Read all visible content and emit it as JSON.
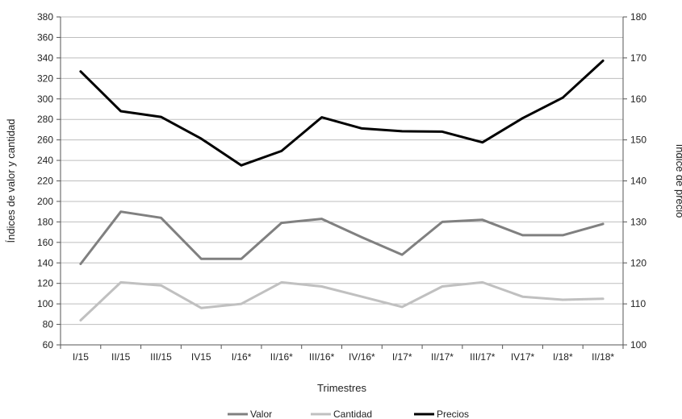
{
  "chart_data": {
    "type": "line",
    "title": "",
    "xlabel": "Trimestres",
    "ylabel_left": "Índices de valor y cantidad",
    "ylabel_right": "Índice de precio",
    "categories": [
      "I/15",
      "II/15",
      "III/15",
      "IV15",
      "I/16*",
      "II/16*",
      "III/16*",
      "IV/16*",
      "I/17*",
      "II/17*",
      "III/17*",
      "IV17*",
      "I/18*",
      "II/18*"
    ],
    "y_left": {
      "min": 60,
      "max": 380,
      "step": 20
    },
    "y_right": {
      "min": 100,
      "max": 180,
      "step": 10
    },
    "grid": true,
    "legend_position": "bottom-center",
    "series": [
      {
        "name": "Valor",
        "axis": "left",
        "color": "#808080",
        "values": [
          139,
          190,
          184,
          144,
          144,
          179,
          183,
          165,
          148,
          180,
          182,
          167,
          167,
          178
        ]
      },
      {
        "name": "Cantidad",
        "axis": "left",
        "color": "#c0c0c0",
        "values": [
          84,
          121,
          118,
          96,
          100,
          121,
          117,
          107,
          97,
          117,
          121,
          107,
          104,
          105
        ]
      },
      {
        "name": "Precios",
        "axis": "right",
        "color": "#000000",
        "values": [
          166.7,
          157.0,
          155.6,
          150.3,
          143.8,
          147.3,
          155.5,
          152.8,
          152.1,
          152.0,
          149.4,
          155.3,
          160.3,
          169.3
        ]
      }
    ]
  }
}
